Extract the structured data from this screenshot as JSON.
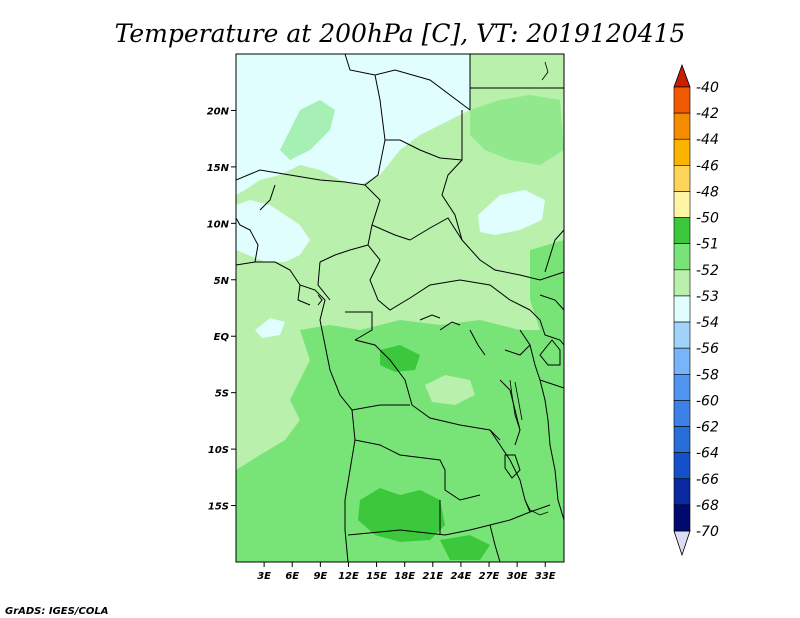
{
  "title": "Temperature at 200hPa [C], VT: 2019120415",
  "credit": "GrADS: IGES/COLA",
  "map": {
    "lon_range": [
      0,
      35
    ],
    "lat_range": [
      -20,
      25
    ],
    "x_ticks": [
      "3E",
      "6E",
      "9E",
      "12E",
      "15E",
      "18E",
      "21E",
      "24E",
      "27E",
      "30E",
      "33E"
    ],
    "y_ticks": [
      "20N",
      "15N",
      "10N",
      "5N",
      "EQ",
      "5S",
      "10S",
      "15S"
    ],
    "ocean_color": "#b8f0ac",
    "land_color": "#b8f0ac"
  },
  "colorbar": {
    "labels": [
      "-40",
      "-42",
      "-44",
      "-46",
      "-48",
      "-50",
      "-51",
      "-52",
      "-53",
      "-54",
      "-56",
      "-58",
      "-60",
      "-62",
      "-64",
      "-66",
      "-68",
      "-70"
    ],
    "colors": [
      "#e63200",
      "#f05a00",
      "#f58c00",
      "#fab400",
      "#fdd55a",
      "#fff5a5",
      "#3cc83c",
      "#78e478",
      "#b8f0ac",
      "#e0fefe",
      "#a0d2fa",
      "#78b4fa",
      "#5096f0",
      "#3c82e6",
      "#286ed7",
      "#1450c8",
      "#0a28a0",
      "#000a6e"
    ],
    "top_tip_color": "#c81e00",
    "bottom_tip_color": "#dcdcf5"
  }
}
